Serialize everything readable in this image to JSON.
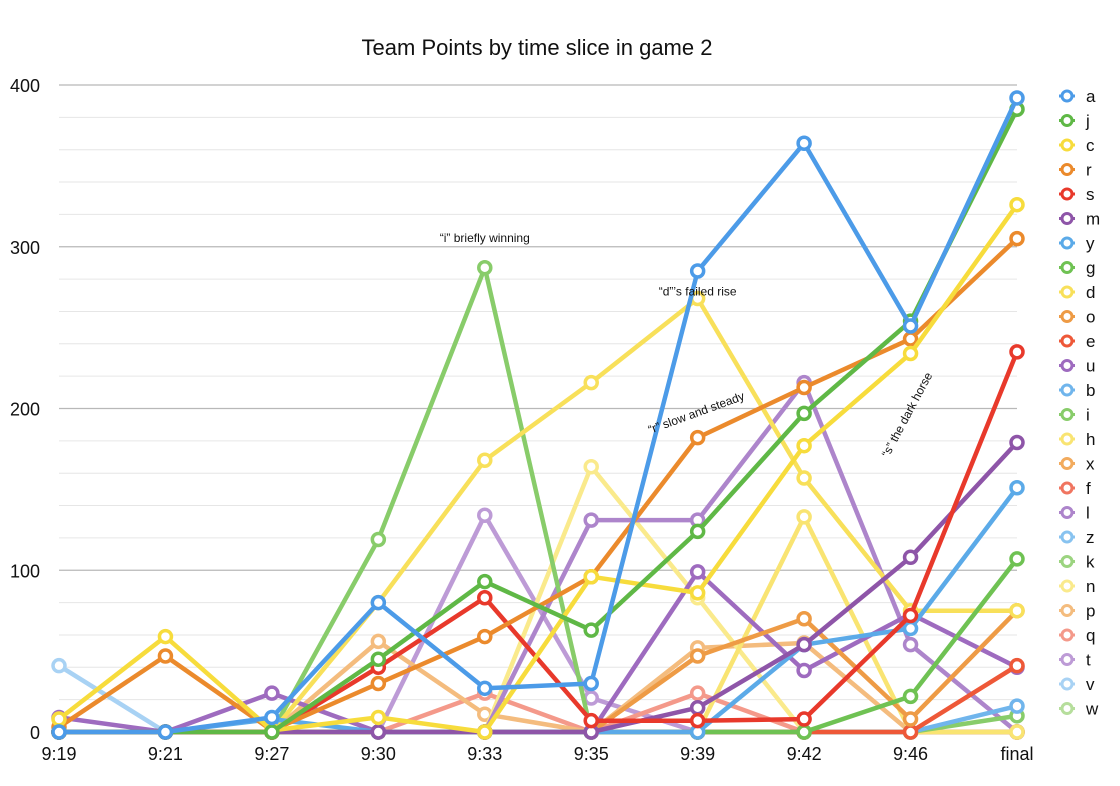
{
  "chart_data": {
    "type": "line",
    "title": "Team Points by time slice in game 2",
    "xlabel": "",
    "ylabel": "",
    "categories": [
      "9:19",
      "9:21",
      "9:27",
      "9:30",
      "9:33",
      "9:35",
      "9:39",
      "9:42",
      "9:46",
      "final"
    ],
    "ylim": [
      0,
      400
    ],
    "yticks": [
      0,
      100,
      200,
      300,
      400
    ],
    "grid": true,
    "legend_position": "right",
    "series": [
      {
        "name": "a",
        "color": "#4C9BE8",
        "values": [
          0,
          0,
          9,
          80,
          27,
          30,
          285,
          364,
          251,
          392
        ]
      },
      {
        "name": "j",
        "color": "#5FB846",
        "values": [
          0,
          0,
          0,
          45,
          93,
          63,
          124,
          197,
          254,
          385
        ]
      },
      {
        "name": "c",
        "color": "#F7DC3C",
        "values": [
          8,
          59,
          1,
          9,
          0,
          96,
          86,
          177,
          234,
          326
        ]
      },
      {
        "name": "r",
        "color": "#EB8A2C",
        "values": [
          3,
          47,
          1,
          30,
          59,
          96,
          182,
          213,
          243,
          305
        ]
      },
      {
        "name": "s",
        "color": "#E8392B",
        "values": [
          0,
          0,
          0,
          40,
          83,
          7,
          7,
          8,
          72,
          235
        ]
      },
      {
        "name": "m",
        "color": "#8E55A8",
        "values": [
          0,
          0,
          0,
          0,
          0,
          0,
          15,
          54,
          108,
          179
        ]
      },
      {
        "name": "y",
        "color": "#5BAAE8",
        "values": [
          0,
          0,
          8,
          0,
          0,
          0,
          0,
          54,
          64,
          151
        ]
      },
      {
        "name": "g",
        "color": "#6FC253",
        "values": [
          0,
          0,
          0,
          0,
          0,
          0,
          0,
          0,
          22,
          107
        ]
      },
      {
        "name": "d",
        "color": "#F8E05A",
        "values": [
          0,
          0,
          0,
          80,
          168,
          216,
          268,
          157,
          75,
          75
        ]
      },
      {
        "name": "o",
        "color": "#EE9B45",
        "values": [
          0,
          0,
          0,
          0,
          0,
          0,
          47,
          70,
          8,
          75
        ]
      },
      {
        "name": "e",
        "color": "#EE5838",
        "values": [
          0,
          0,
          0,
          0,
          0,
          0,
          0,
          0,
          0,
          41
        ]
      },
      {
        "name": "u",
        "color": "#9E6BBF",
        "values": [
          9,
          0,
          24,
          0,
          0,
          0,
          99,
          38,
          73,
          40
        ]
      },
      {
        "name": "b",
        "color": "#70B5EC",
        "values": [
          0,
          0,
          0,
          0,
          0,
          0,
          0,
          0,
          0,
          16
        ]
      },
      {
        "name": "i",
        "color": "#88CC6A",
        "values": [
          0,
          0,
          0,
          119,
          287,
          0,
          0,
          0,
          0,
          10
        ]
      },
      {
        "name": "h",
        "color": "#F9E472",
        "values": [
          0,
          0,
          0,
          0,
          0,
          0,
          0,
          133,
          0,
          0
        ]
      },
      {
        "name": "x",
        "color": "#F2AB5E",
        "values": [
          0,
          0,
          0,
          0,
          0,
          0,
          0,
          0,
          0,
          0
        ]
      },
      {
        "name": "f",
        "color": "#F07560",
        "values": [
          0,
          0,
          0,
          0,
          0,
          0,
          0,
          0,
          0,
          0
        ]
      },
      {
        "name": "l",
        "color": "#AD85CB",
        "values": [
          0,
          0,
          0,
          0,
          0,
          131,
          131,
          216,
          54,
          0
        ]
      },
      {
        "name": "z",
        "color": "#88C3F0",
        "values": [
          0,
          0,
          0,
          0,
          0,
          0,
          0,
          0,
          0,
          0
        ]
      },
      {
        "name": "k",
        "color": "#9CD480",
        "values": [
          0,
          0,
          0,
          0,
          0,
          0,
          0,
          0,
          0,
          0
        ]
      },
      {
        "name": "n",
        "color": "#FAEA8C",
        "values": [
          0,
          0,
          0,
          0,
          0,
          164,
          83,
          0,
          0,
          0
        ]
      },
      {
        "name": "p",
        "color": "#F4BC7E",
        "values": [
          0,
          0,
          0,
          56,
          11,
          0,
          52,
          55,
          0,
          0
        ]
      },
      {
        "name": "q",
        "color": "#F4998A",
        "values": [
          0,
          0,
          0,
          0,
          24,
          0,
          24,
          0,
          0,
          0
        ]
      },
      {
        "name": "t",
        "color": "#BD9BD6",
        "values": [
          0,
          0,
          0,
          0,
          134,
          21,
          0,
          0,
          0,
          0
        ]
      },
      {
        "name": "v",
        "color": "#A8D2F4",
        "values": [
          41,
          0,
          0,
          0,
          0,
          0,
          0,
          0,
          0,
          0
        ]
      },
      {
        "name": "w",
        "color": "#B6DE9C",
        "values": [
          0,
          0,
          0,
          0,
          0,
          0,
          0,
          0,
          0,
          0
        ]
      }
    ],
    "annotations": [
      {
        "text": "“i” briefly winning",
        "category": "9:33",
        "value": 303,
        "rotate": 0
      },
      {
        "text": "“d”’s failed rise",
        "category": "9:39",
        "value": 270,
        "rotate": 0
      },
      {
        "text": "“r” slow and steady",
        "category": "9:39",
        "value": 195,
        "rotate": -20
      },
      {
        "text": "“s” the dark horse",
        "category": "9:46",
        "value": 195,
        "rotate": -62
      }
    ]
  }
}
